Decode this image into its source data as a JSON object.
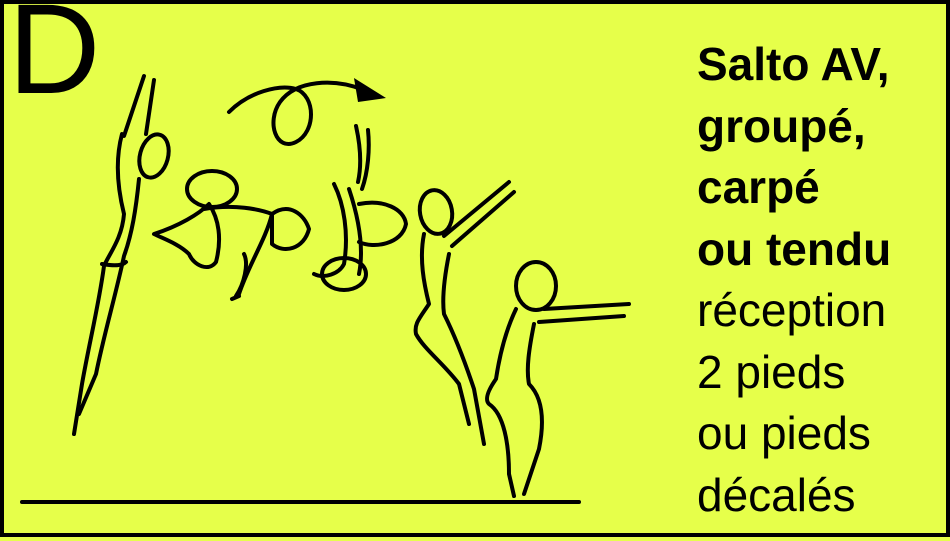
{
  "level_letter": "D",
  "caption": {
    "bold_lines": [
      "Salto AV,",
      "groupé,",
      "carpé",
      "ou tendu"
    ],
    "normal_lines": [
      "réception",
      "2 pieds",
      "ou pieds",
      "décalés"
    ]
  },
  "colors": {
    "background": "#e6ff4a",
    "ink": "#000000"
  },
  "icons": [
    "rotation-arrow-icon",
    "gymnast-figure-icon",
    "floor-line"
  ]
}
